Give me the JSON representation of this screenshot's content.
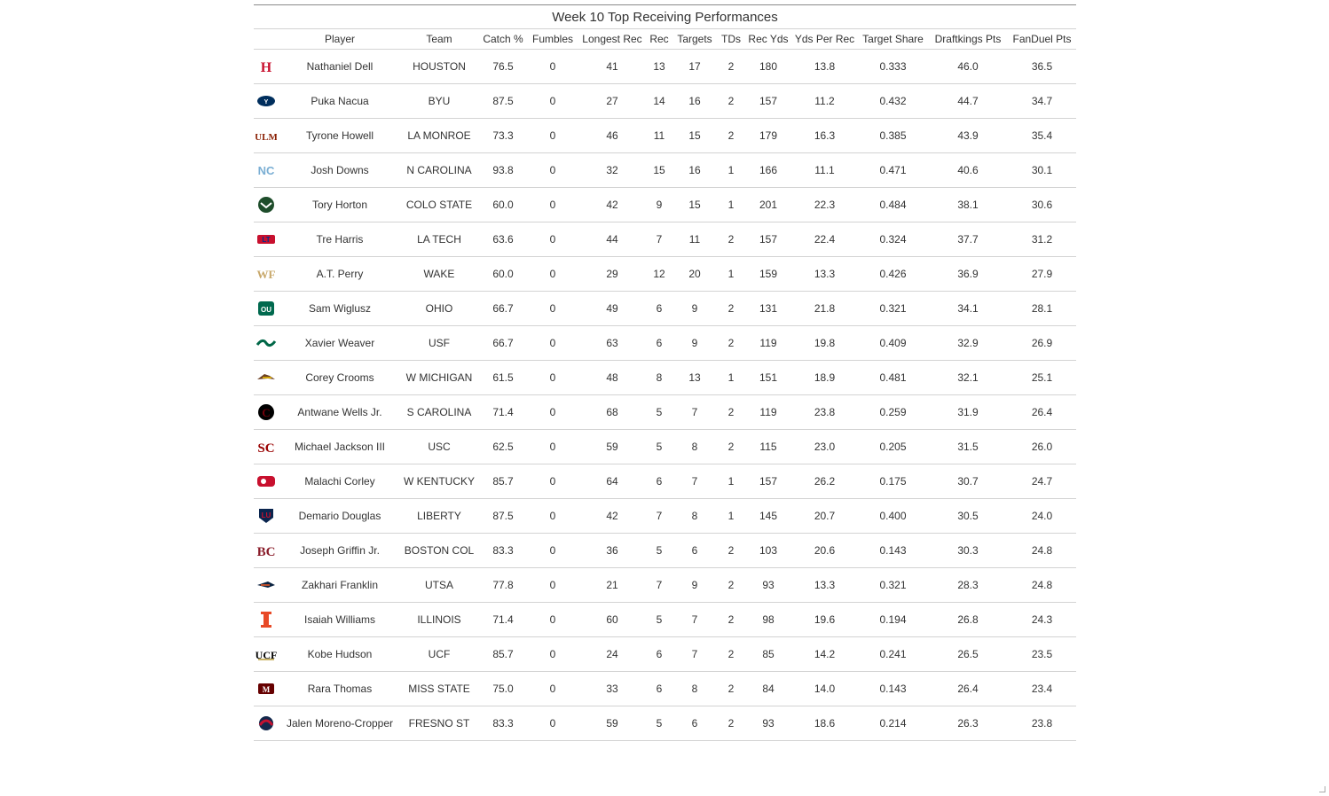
{
  "table": {
    "title": "Week 10 Top Receiving Performances",
    "columns": [
      "",
      "Player",
      "Team",
      "Catch %",
      "Fumbles",
      "Longest Rec",
      "Rec",
      "Targets",
      "TDs",
      "Rec Yds",
      "Yds Per Rec",
      "Target Share",
      "Draftkings Pts",
      "FanDuel Pts"
    ],
    "rows": [
      {
        "logo": "houston-logo",
        "color": "#c8102e",
        "player": "Nathaniel Dell",
        "team": "HOUSTON",
        "catch_pct": "76.5",
        "fumbles": "0",
        "longest": "41",
        "rec": "13",
        "targets": "17",
        "tds": "2",
        "yds": "180",
        "ypr": "13.8",
        "share": "0.333",
        "dk": "46.0",
        "fd": "36.5"
      },
      {
        "logo": "byu-logo",
        "color": "#002e5d",
        "player": "Puka Nacua",
        "team": "BYU",
        "catch_pct": "87.5",
        "fumbles": "0",
        "longest": "27",
        "rec": "14",
        "targets": "16",
        "tds": "2",
        "yds": "157",
        "ypr": "11.2",
        "share": "0.432",
        "dk": "44.7",
        "fd": "34.7"
      },
      {
        "logo": "la-monroe-logo",
        "color": "#8a1f03",
        "player": "Tyrone Howell",
        "team": "LA MONROE",
        "catch_pct": "73.3",
        "fumbles": "0",
        "longest": "46",
        "rec": "11",
        "targets": "15",
        "tds": "2",
        "yds": "179",
        "ypr": "16.3",
        "share": "0.385",
        "dk": "43.9",
        "fd": "35.4"
      },
      {
        "logo": "north-carolina-logo",
        "color": "#7bafd4",
        "player": "Josh Downs",
        "team": "N CAROLINA",
        "catch_pct": "93.8",
        "fumbles": "0",
        "longest": "32",
        "rec": "15",
        "targets": "16",
        "tds": "1",
        "yds": "166",
        "ypr": "11.1",
        "share": "0.471",
        "dk": "40.6",
        "fd": "30.1"
      },
      {
        "logo": "colorado-state-logo",
        "color": "#1e4d2b",
        "player": "Tory Horton",
        "team": "COLO STATE",
        "catch_pct": "60.0",
        "fumbles": "0",
        "longest": "42",
        "rec": "9",
        "targets": "15",
        "tds": "1",
        "yds": "201",
        "ypr": "22.3",
        "share": "0.484",
        "dk": "38.1",
        "fd": "30.6"
      },
      {
        "logo": "la-tech-logo",
        "color": "#002f8b",
        "player": "Tre Harris",
        "team": "LA TECH",
        "catch_pct": "63.6",
        "fumbles": "0",
        "longest": "44",
        "rec": "7",
        "targets": "11",
        "tds": "2",
        "yds": "157",
        "ypr": "22.4",
        "share": "0.324",
        "dk": "37.7",
        "fd": "31.2"
      },
      {
        "logo": "wake-forest-logo",
        "color": "#c8a86b",
        "player": "A.T. Perry",
        "team": "WAKE",
        "catch_pct": "60.0",
        "fumbles": "0",
        "longest": "29",
        "rec": "12",
        "targets": "20",
        "tds": "1",
        "yds": "159",
        "ypr": "13.3",
        "share": "0.426",
        "dk": "36.9",
        "fd": "27.9"
      },
      {
        "logo": "ohio-logo",
        "color": "#00694e",
        "player": "Sam Wiglusz",
        "team": "OHIO",
        "catch_pct": "66.7",
        "fumbles": "0",
        "longest": "49",
        "rec": "6",
        "targets": "9",
        "tds": "2",
        "yds": "131",
        "ypr": "21.8",
        "share": "0.321",
        "dk": "34.1",
        "fd": "28.1"
      },
      {
        "logo": "usf-logo",
        "color": "#006747",
        "player": "Xavier Weaver",
        "team": "USF",
        "catch_pct": "66.7",
        "fumbles": "0",
        "longest": "63",
        "rec": "6",
        "targets": "9",
        "tds": "2",
        "yds": "119",
        "ypr": "19.8",
        "share": "0.409",
        "dk": "32.9",
        "fd": "26.9"
      },
      {
        "logo": "western-michigan-logo",
        "color": "#6c4023",
        "player": "Corey Crooms",
        "team": "W MICHIGAN",
        "catch_pct": "61.5",
        "fumbles": "0",
        "longest": "48",
        "rec": "8",
        "targets": "13",
        "tds": "1",
        "yds": "151",
        "ypr": "18.9",
        "share": "0.481",
        "dk": "32.1",
        "fd": "25.1"
      },
      {
        "logo": "south-carolina-logo",
        "color": "#73000a",
        "player": "Antwane Wells Jr.",
        "team": "S CAROLINA",
        "catch_pct": "71.4",
        "fumbles": "0",
        "longest": "68",
        "rec": "5",
        "targets": "7",
        "tds": "2",
        "yds": "119",
        "ypr": "23.8",
        "share": "0.259",
        "dk": "31.9",
        "fd": "26.4"
      },
      {
        "logo": "usc-logo",
        "color": "#990000",
        "player": "Michael Jackson III",
        "team": "USC",
        "catch_pct": "62.5",
        "fumbles": "0",
        "longest": "59",
        "rec": "5",
        "targets": "8",
        "tds": "2",
        "yds": "115",
        "ypr": "23.0",
        "share": "0.205",
        "dk": "31.5",
        "fd": "26.0"
      },
      {
        "logo": "western-kentucky-logo",
        "color": "#c8102e",
        "player": "Malachi Corley",
        "team": "W KENTUCKY",
        "catch_pct": "85.7",
        "fumbles": "0",
        "longest": "64",
        "rec": "6",
        "targets": "7",
        "tds": "1",
        "yds": "157",
        "ypr": "26.2",
        "share": "0.175",
        "dk": "30.7",
        "fd": "24.7"
      },
      {
        "logo": "liberty-logo",
        "color": "#0a254e",
        "player": "Demario Douglas",
        "team": "LIBERTY",
        "catch_pct": "87.5",
        "fumbles": "0",
        "longest": "42",
        "rec": "7",
        "targets": "8",
        "tds": "1",
        "yds": "145",
        "ypr": "20.7",
        "share": "0.400",
        "dk": "30.5",
        "fd": "24.0"
      },
      {
        "logo": "boston-college-logo",
        "color": "#8a1d2a",
        "player": "Joseph Griffin Jr.",
        "team": "BOSTON COL",
        "catch_pct": "83.3",
        "fumbles": "0",
        "longest": "36",
        "rec": "5",
        "targets": "6",
        "tds": "2",
        "yds": "103",
        "ypr": "20.6",
        "share": "0.143",
        "dk": "30.3",
        "fd": "24.8"
      },
      {
        "logo": "utsa-logo",
        "color": "#0c2340",
        "player": "Zakhari Franklin",
        "team": "UTSA",
        "catch_pct": "77.8",
        "fumbles": "0",
        "longest": "21",
        "rec": "7",
        "targets": "9",
        "tds": "2",
        "yds": "93",
        "ypr": "13.3",
        "share": "0.321",
        "dk": "28.3",
        "fd": "24.8"
      },
      {
        "logo": "illinois-logo",
        "color": "#e84a27",
        "player": "Isaiah Williams",
        "team": "ILLINOIS",
        "catch_pct": "71.4",
        "fumbles": "0",
        "longest": "60",
        "rec": "5",
        "targets": "7",
        "tds": "2",
        "yds": "98",
        "ypr": "19.6",
        "share": "0.194",
        "dk": "26.8",
        "fd": "24.3"
      },
      {
        "logo": "ucf-logo",
        "color": "#ba9b37",
        "player": "Kobe Hudson",
        "team": "UCF",
        "catch_pct": "85.7",
        "fumbles": "0",
        "longest": "24",
        "rec": "6",
        "targets": "7",
        "tds": "2",
        "yds": "85",
        "ypr": "14.2",
        "share": "0.241",
        "dk": "26.5",
        "fd": "23.5"
      },
      {
        "logo": "mississippi-state-logo",
        "color": "#660000",
        "player": "Rara Thomas",
        "team": "MISS STATE",
        "catch_pct": "75.0",
        "fumbles": "0",
        "longest": "33",
        "rec": "6",
        "targets": "8",
        "tds": "2",
        "yds": "84",
        "ypr": "14.0",
        "share": "0.143",
        "dk": "26.4",
        "fd": "23.4"
      },
      {
        "logo": "fresno-state-logo",
        "color": "#c41230",
        "player": "Jalen Moreno-Cropper",
        "team": "FRESNO ST",
        "catch_pct": "83.3",
        "fumbles": "0",
        "longest": "59",
        "rec": "5",
        "targets": "6",
        "tds": "2",
        "yds": "93",
        "ypr": "18.6",
        "share": "0.214",
        "dk": "26.3",
        "fd": "23.8"
      }
    ]
  }
}
